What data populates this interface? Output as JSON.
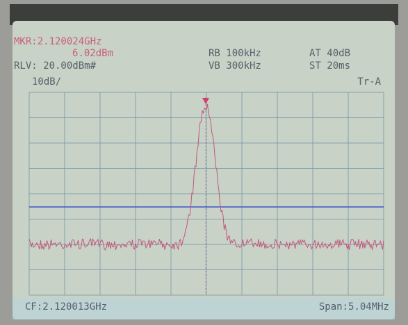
{
  "screen": {
    "marker": "MKR:2.120024GHz",
    "marker_level": "6.02dBm",
    "reference_level": "RLV: 20.00dBm#",
    "rbw": "RB 100kHz",
    "vbw": "VB 300kHz",
    "attenuation": "AT 40dB",
    "sweep_time": "ST 20ms",
    "scale": "10dB/",
    "trace": "Tr-A",
    "center_frequency": "CF:2.120013GHz",
    "span": "Span:5.04MHz"
  }
}
